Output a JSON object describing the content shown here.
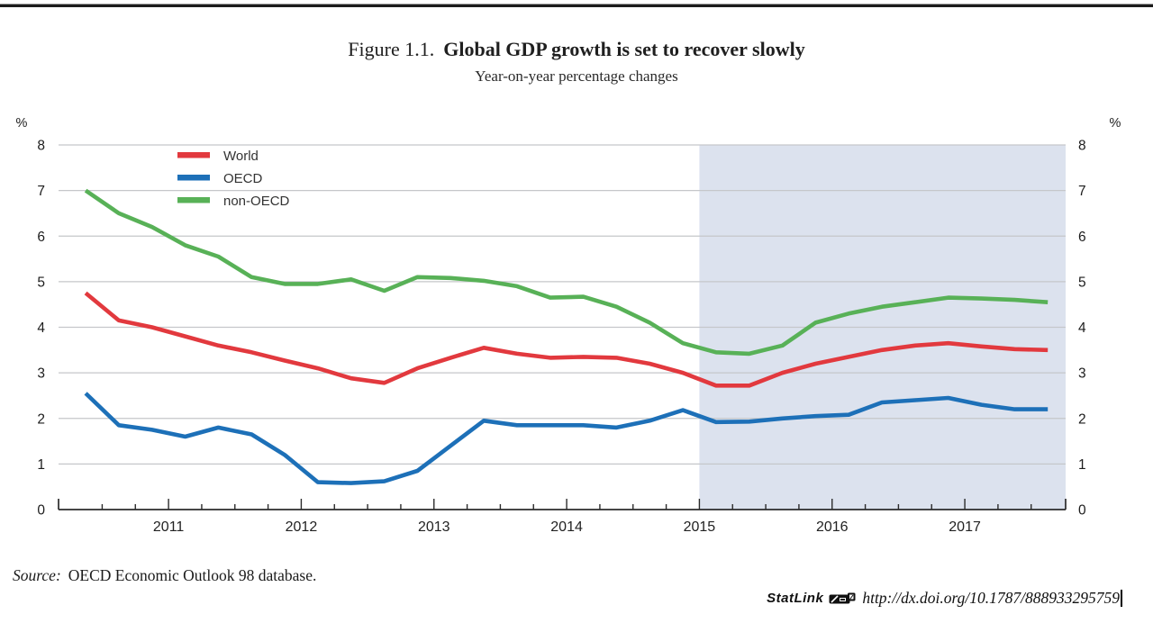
{
  "header": {
    "figure_label": "Figure 1.1.",
    "title": "Global GDP growth is set to recover slowly",
    "subtitle": "Year-on-year percentage changes"
  },
  "footer": {
    "source_label": "Source:",
    "source_text": "OECD Economic Outlook 98 database.",
    "statlink_label": "StatLink",
    "statlink_icon": "statlink-logo",
    "statlink_url": "http://dx.doi.org/10.1787/888933295759"
  },
  "chart_data": {
    "type": "line",
    "title": "Global GDP growth is set to recover slowly",
    "subtitle": "Year-on-year percentage changes",
    "unit_label": "%",
    "ylim": [
      0,
      8
    ],
    "yticks": [
      0,
      1,
      2,
      3,
      4,
      5,
      6,
      7,
      8
    ],
    "grid": "horizontal",
    "legend_position": "top-left-inside",
    "year_labels": [
      "2011",
      "2012",
      "2013",
      "2014",
      "2015",
      "2016",
      "2017"
    ],
    "x_quarters": [
      "2010-Q2",
      "2010-Q3",
      "2010-Q4",
      "2011-Q1",
      "2011-Q2",
      "2011-Q3",
      "2011-Q4",
      "2012-Q1",
      "2012-Q2",
      "2012-Q3",
      "2012-Q4",
      "2013-Q1",
      "2013-Q2",
      "2013-Q3",
      "2013-Q4",
      "2014-Q1",
      "2014-Q2",
      "2014-Q3",
      "2014-Q4",
      "2015-Q1",
      "2015-Q2",
      "2015-Q3",
      "2015-Q4",
      "2016-Q1",
      "2016-Q2",
      "2016-Q3",
      "2016-Q4",
      "2017-Q1",
      "2017-Q2",
      "2017-Q3"
    ],
    "forecast_region": {
      "from_year_label": "2015",
      "from_quarter": "2015-Q1",
      "color": "#dce2ee"
    },
    "colors": {
      "grid": "#c5c7ca",
      "axis": "#2b2b2b",
      "tick_label": "#1c1c1c"
    },
    "series": [
      {
        "name": "World",
        "color": "#e2393e",
        "values": [
          4.75,
          4.15,
          4.0,
          3.8,
          3.6,
          3.45,
          3.27,
          3.1,
          2.88,
          2.78,
          3.1,
          3.33,
          3.55,
          3.42,
          3.33,
          3.35,
          3.33,
          3.2,
          3.0,
          2.72,
          2.72,
          3.0,
          3.2,
          3.35,
          3.5,
          3.6,
          3.65,
          3.58,
          3.52,
          3.5
        ]
      },
      {
        "name": "OECD",
        "color": "#1d70b8",
        "values": [
          2.55,
          1.85,
          1.75,
          1.6,
          1.8,
          1.65,
          1.2,
          0.6,
          0.58,
          0.62,
          0.85,
          1.4,
          1.95,
          1.85,
          1.85,
          1.85,
          1.8,
          1.95,
          2.18,
          1.92,
          1.93,
          2.0,
          2.05,
          2.08,
          2.35,
          2.4,
          2.45,
          2.3,
          2.2,
          2.2
        ]
      },
      {
        "name": "non-OECD",
        "color": "#58b157",
        "values": [
          7.0,
          6.5,
          6.2,
          5.8,
          5.55,
          5.1,
          4.95,
          4.95,
          5.05,
          4.8,
          5.1,
          5.08,
          5.02,
          4.9,
          4.65,
          4.67,
          4.45,
          4.1,
          3.65,
          3.45,
          3.42,
          3.6,
          4.1,
          4.3,
          4.45,
          4.55,
          4.65,
          4.63,
          4.6,
          4.55
        ]
      }
    ]
  }
}
